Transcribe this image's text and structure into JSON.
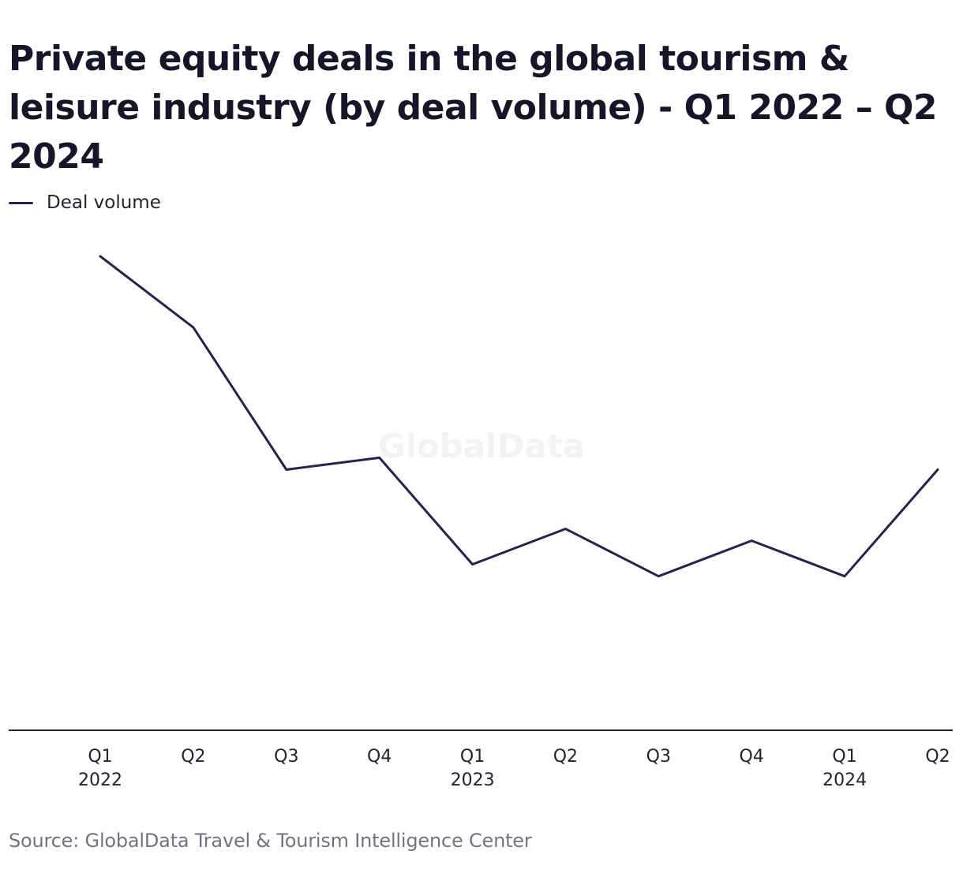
{
  "chart_data": {
    "type": "line",
    "title": "Private equity deals in the global tourism & leisure industry (by deal volume) - Q1 2022 – Q2 2024",
    "xlabel": "",
    "ylabel": "",
    "categories": [
      {
        "quarter": "Q1",
        "year": "2022"
      },
      {
        "quarter": "Q2",
        "year": ""
      },
      {
        "quarter": "Q3",
        "year": ""
      },
      {
        "quarter": "Q4",
        "year": ""
      },
      {
        "quarter": "Q1",
        "year": "2023"
      },
      {
        "quarter": "Q2",
        "year": ""
      },
      {
        "quarter": "Q3",
        "year": ""
      },
      {
        "quarter": "Q4",
        "year": ""
      },
      {
        "quarter": "Q1",
        "year": "2024"
      },
      {
        "quarter": "Q2",
        "year": ""
      }
    ],
    "series": [
      {
        "name": "Deal volume",
        "color": "#2d1f4d",
        "values": [
          200,
          170,
          110,
          115,
          70,
          85,
          65,
          80,
          65,
          110
        ]
      }
    ],
    "ylim": [
      0,
      200
    ],
    "grid": false,
    "legend": "top-left",
    "watermark": "GlobalData",
    "source": "Source: GlobalData Travel & Tourism Intelligence Center"
  }
}
